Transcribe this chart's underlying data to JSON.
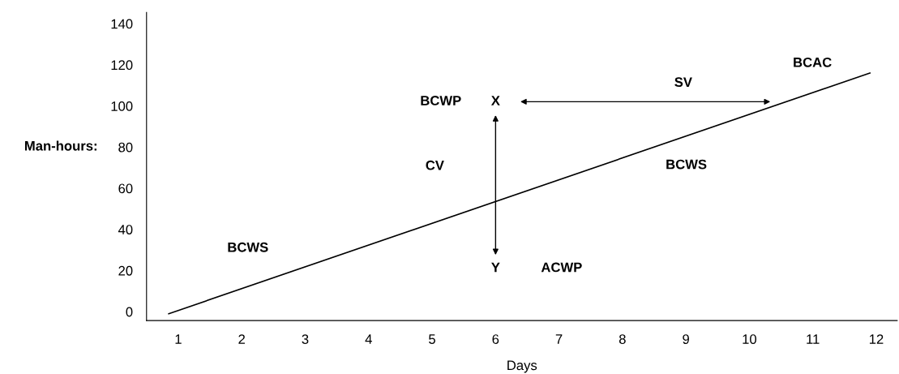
{
  "chart_data": {
    "type": "line",
    "xlabel": "Days",
    "ylabel": "Man-hours:",
    "x": [
      0.85,
      11.9
    ],
    "series": [
      {
        "color": "#000000",
        "values": [
          -1,
          116
        ]
      }
    ],
    "xlim": [
      0.5,
      12.33
    ],
    "ylim": [
      -4.3,
      145.5
    ],
    "xticks": [
      1,
      2,
      3,
      4,
      5,
      6,
      7,
      8,
      9,
      10,
      11,
      12
    ],
    "yticks": [
      0,
      20,
      40,
      60,
      80,
      100,
      120,
      140
    ],
    "grid": false,
    "legend": false,
    "marker": "none",
    "line_style": "solid",
    "annotations": [
      "BCWP",
      "X",
      "Y",
      "CV",
      "ACWP",
      "SV",
      "BCAC",
      "BCWS",
      "BCWS"
    ]
  }
}
